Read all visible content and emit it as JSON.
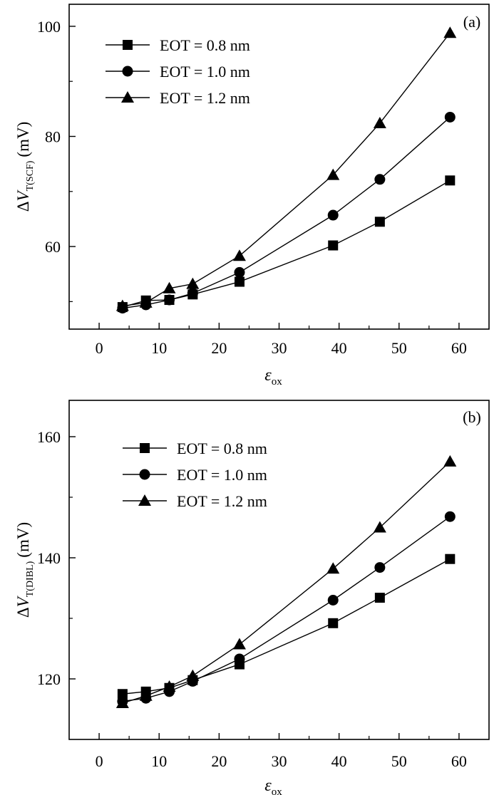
{
  "chart_data": [
    {
      "type": "line",
      "panel_label": "(a)",
      "xlabel": "ε",
      "xlabel_sub": "ox",
      "ylabel_prefix": "Δ",
      "ylabel_var": "V",
      "ylabel_sub": "T(SCF)",
      "ylabel_unit": "(mV)",
      "xlim": [
        -5,
        65
      ],
      "ylim": [
        45,
        104
      ],
      "xticks": [
        0,
        10,
        20,
        30,
        40,
        50,
        60
      ],
      "yticks": [
        60,
        80,
        100
      ],
      "legend_position": "top-left",
      "series": [
        {
          "name": "EOT = 0.8 nm",
          "marker": "square",
          "x": [
            3.9,
            7.8,
            11.7,
            15.6,
            23.4,
            39,
            46.8,
            58.5
          ],
          "y": [
            49.0,
            50.2,
            50.3,
            51.3,
            53.6,
            60.2,
            64.5,
            72.0
          ]
        },
        {
          "name": "EOT = 1.0 nm",
          "marker": "circle",
          "x": [
            3.9,
            7.8,
            11.7,
            15.6,
            23.4,
            39,
            46.8,
            58.5
          ],
          "y": [
            48.8,
            49.4,
            50.3,
            51.5,
            55.3,
            65.7,
            72.2,
            83.5
          ]
        },
        {
          "name": "EOT = 1.2 nm",
          "marker": "triangle",
          "x": [
            3.9,
            7.8,
            11.7,
            15.6,
            23.4,
            39,
            46.8,
            58.5
          ],
          "y": [
            49.2,
            49.8,
            52.4,
            53.2,
            58.3,
            73.0,
            82.4,
            98.8
          ]
        }
      ]
    },
    {
      "type": "line",
      "panel_label": "(b)",
      "xlabel": "ε",
      "xlabel_sub": "ox",
      "ylabel_prefix": "Δ",
      "ylabel_var": "V",
      "ylabel_sub": "T(DIBL)",
      "ylabel_unit": "(mV)",
      "xlim": [
        -5,
        65
      ],
      "ylim": [
        110,
        166
      ],
      "xticks": [
        0,
        10,
        20,
        30,
        40,
        50,
        60
      ],
      "yticks": [
        120,
        140,
        160
      ],
      "legend_position": "top-left",
      "series": [
        {
          "name": "EOT = 0.8 nm",
          "marker": "square",
          "x": [
            3.9,
            7.8,
            11.7,
            15.6,
            23.4,
            39,
            46.8,
            58.5
          ],
          "y": [
            117.5,
            117.9,
            118.5,
            119.8,
            122.4,
            129.2,
            133.4,
            139.8
          ]
        },
        {
          "name": "EOT = 1.0 nm",
          "marker": "circle",
          "x": [
            3.9,
            7.8,
            11.7,
            15.6,
            23.4,
            39,
            46.8,
            58.5
          ],
          "y": [
            116.3,
            116.8,
            117.9,
            119.6,
            123.3,
            133.0,
            138.4,
            146.8
          ]
        },
        {
          "name": "EOT = 1.2 nm",
          "marker": "triangle",
          "x": [
            3.9,
            7.8,
            11.7,
            15.6,
            23.4,
            39,
            46.8,
            58.5
          ],
          "y": [
            116.0,
            117.2,
            118.7,
            120.5,
            125.7,
            138.2,
            145.0,
            155.9
          ]
        }
      ]
    }
  ]
}
